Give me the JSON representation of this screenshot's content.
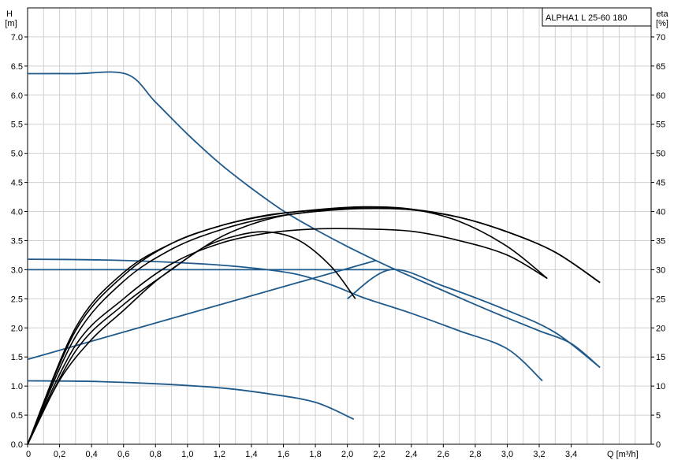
{
  "chart_data": {
    "type": "line",
    "title": "",
    "legend": {
      "text": "ALPHA1 L 25-60  180",
      "placement": "top-right"
    },
    "y_left": {
      "label_top": "H",
      "label_bottom": "[m]",
      "range": [
        0,
        7.5
      ],
      "ticks": [
        "0.0",
        "0.5",
        "1.0",
        "1.5",
        "2.0",
        "2.5",
        "3.0",
        "3.5",
        "4.0",
        "4.5",
        "5.0",
        "5.5",
        "6.0",
        "6.5",
        "7.0"
      ],
      "tick_values": [
        0,
        0.5,
        1,
        1.5,
        2,
        2.5,
        3,
        3.5,
        4,
        4.5,
        5,
        5.5,
        6,
        6.5,
        7
      ]
    },
    "y_right": {
      "label_top": "eta",
      "label_bottom": "[%]",
      "range": [
        0,
        75
      ],
      "ticks": [
        "0",
        "5",
        "10",
        "15",
        "20",
        "25",
        "30",
        "35",
        "40",
        "45",
        "50",
        "55",
        "60",
        "65",
        "70"
      ],
      "tick_values": [
        0,
        5,
        10,
        15,
        20,
        25,
        30,
        35,
        40,
        45,
        50,
        55,
        60,
        65,
        70
      ]
    },
    "x": {
      "label": "Q [m³/h]",
      "range": [
        0,
        3.9
      ],
      "ticks": [
        "0",
        "0,2",
        "0,4",
        "0,6",
        "0,8",
        "1,0",
        "1,2",
        "1,4",
        "1,6",
        "1,8",
        "2,0",
        "2,2",
        "2,4",
        "2,6",
        "2,8",
        "3,0",
        "3,2",
        "3,4"
      ],
      "tick_values": [
        0,
        0.2,
        0.4,
        0.6,
        0.8,
        1.0,
        1.2,
        1.4,
        1.6,
        1.8,
        2.0,
        2.2,
        2.4,
        2.6,
        2.8,
        3.0,
        3.2,
        3.4
      ]
    },
    "grid": true,
    "colors": {
      "head": "#1f5a8b",
      "eff": "#000000",
      "grid": "#d0d0d0"
    },
    "series": [
      {
        "kind": "head",
        "axis": "left",
        "points": [
          [
            0,
            6.37
          ],
          [
            0.3,
            6.37
          ],
          [
            0.62,
            6.36
          ],
          [
            0.8,
            5.88
          ],
          [
            1.0,
            5.33
          ],
          [
            1.2,
            4.83
          ],
          [
            1.4,
            4.4
          ],
          [
            1.6,
            4.01
          ],
          [
            1.8,
            3.69
          ],
          [
            2.0,
            3.4
          ],
          [
            2.2,
            3.13
          ],
          [
            2.4,
            2.88
          ],
          [
            2.6,
            2.64
          ],
          [
            2.8,
            2.4
          ],
          [
            3.0,
            2.17
          ],
          [
            3.2,
            1.95
          ],
          [
            3.4,
            1.73
          ],
          [
            3.58,
            1.32
          ]
        ]
      },
      {
        "kind": "head",
        "axis": "left",
        "points": [
          [
            0,
            3.18
          ],
          [
            0.4,
            3.17
          ],
          [
            0.8,
            3.14
          ],
          [
            1.2,
            3.08
          ],
          [
            1.5,
            3.0
          ],
          [
            1.7,
            2.91
          ],
          [
            1.9,
            2.74
          ],
          [
            2.1,
            2.52
          ],
          [
            2.4,
            2.25
          ],
          [
            2.7,
            1.95
          ],
          [
            3.0,
            1.64
          ],
          [
            3.22,
            1.09
          ]
        ]
      },
      {
        "kind": "head",
        "axis": "left",
        "points": [
          [
            0,
            3.0
          ],
          [
            2.27,
            3.0
          ]
        ]
      },
      {
        "kind": "head",
        "axis": "left",
        "points": [
          [
            2.0,
            2.5
          ],
          [
            2.27,
            3.0
          ],
          [
            2.6,
            2.72
          ],
          [
            3.0,
            2.3
          ],
          [
            3.3,
            1.92
          ],
          [
            3.58,
            1.32
          ]
        ]
      },
      {
        "kind": "head",
        "axis": "left",
        "points": [
          [
            0,
            1.46
          ],
          [
            2.18,
            3.16
          ]
        ]
      },
      {
        "kind": "head",
        "axis": "left",
        "points": [
          [
            0,
            1.09
          ],
          [
            0.4,
            1.08
          ],
          [
            0.8,
            1.04
          ],
          [
            1.2,
            0.97
          ],
          [
            1.5,
            0.87
          ],
          [
            1.8,
            0.72
          ],
          [
            2.04,
            0.43
          ]
        ]
      },
      {
        "kind": "eff",
        "axis": "right",
        "points": [
          [
            0,
            0
          ],
          [
            0.3,
            20
          ],
          [
            0.6,
            29.5
          ],
          [
            0.9,
            34.5
          ],
          [
            1.2,
            37.5
          ],
          [
            1.5,
            39.3
          ],
          [
            1.8,
            40.3
          ],
          [
            2.1,
            40.8
          ],
          [
            2.4,
            40.4
          ],
          [
            2.7,
            38.3
          ],
          [
            3.0,
            34
          ],
          [
            3.25,
            28.5
          ]
        ]
      },
      {
        "kind": "eff",
        "axis": "right",
        "points": [
          [
            0,
            0
          ],
          [
            0.3,
            19.5
          ],
          [
            0.6,
            29
          ],
          [
            0.9,
            34.5
          ],
          [
            1.2,
            37.5
          ],
          [
            1.5,
            39.4
          ],
          [
            1.8,
            40.2
          ],
          [
            2.1,
            40.6
          ],
          [
            2.4,
            40.3
          ],
          [
            2.7,
            39
          ],
          [
            3.0,
            36.5
          ],
          [
            3.3,
            33
          ],
          [
            3.58,
            27.8
          ]
        ]
      },
      {
        "kind": "eff",
        "axis": "right",
        "points": [
          [
            0,
            0
          ],
          [
            0.3,
            18.5
          ],
          [
            0.6,
            28
          ],
          [
            0.9,
            33.5
          ],
          [
            1.2,
            36.8
          ],
          [
            1.5,
            38.9
          ],
          [
            1.8,
            40
          ],
          [
            2.1,
            40.5
          ],
          [
            2.4,
            40.3
          ],
          [
            2.7,
            39
          ],
          [
            3.0,
            36.5
          ],
          [
            3.3,
            33
          ],
          [
            3.58,
            27.8
          ]
        ]
      },
      {
        "kind": "eff",
        "axis": "right",
        "points": [
          [
            0,
            0
          ],
          [
            0.3,
            17
          ],
          [
            0.6,
            25
          ],
          [
            0.9,
            31
          ],
          [
            1.2,
            34.5
          ],
          [
            1.5,
            36.3
          ],
          [
            1.8,
            37
          ],
          [
            2.1,
            37
          ],
          [
            2.4,
            36.6
          ],
          [
            2.7,
            35
          ],
          [
            3.0,
            32.5
          ],
          [
            3.25,
            28.5
          ]
        ]
      },
      {
        "kind": "eff",
        "axis": "right",
        "points": [
          [
            0,
            0
          ],
          [
            0.3,
            16
          ],
          [
            0.6,
            24
          ],
          [
            0.9,
            30
          ],
          [
            1.1,
            33.8
          ],
          [
            1.3,
            35.8
          ],
          [
            1.5,
            36.5
          ],
          [
            1.7,
            35
          ],
          [
            1.9,
            30.5
          ],
          [
            2.05,
            25
          ]
        ]
      },
      {
        "kind": "eff",
        "axis": "right",
        "points": [
          [
            0,
            0
          ],
          [
            0.2,
            11
          ],
          [
            0.4,
            18
          ],
          [
            0.6,
            23
          ],
          [
            0.8,
            28
          ],
          [
            1.0,
            32
          ],
          [
            1.2,
            35.5
          ],
          [
            1.4,
            37.8
          ],
          [
            1.6,
            39.3
          ],
          [
            1.8,
            40
          ],
          [
            2.0,
            40.5
          ],
          [
            2.2,
            40.6
          ],
          [
            2.4,
            40.4
          ],
          [
            2.7,
            39
          ],
          [
            3.0,
            36.5
          ],
          [
            3.3,
            33
          ],
          [
            3.58,
            27.8
          ]
        ]
      }
    ]
  }
}
